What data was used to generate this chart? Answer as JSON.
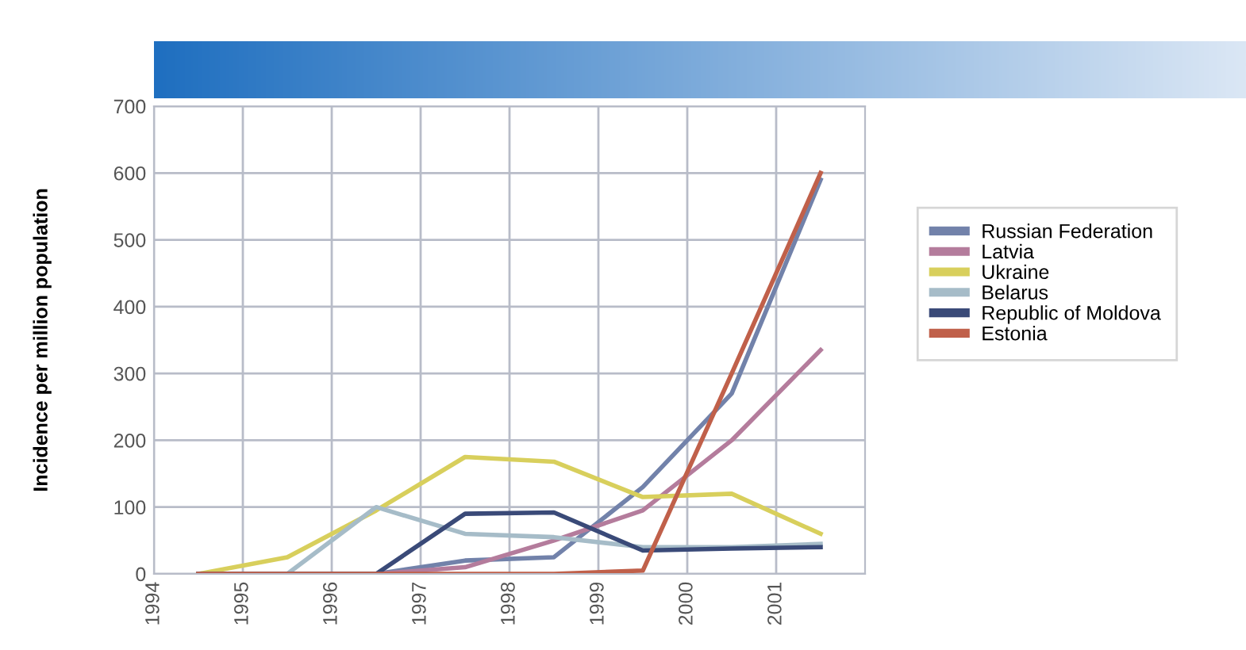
{
  "chart_data": {
    "type": "line",
    "ylabel": "Incidence per million population",
    "x": [
      1994.5,
      1995.5,
      1996.5,
      1997.5,
      1998.5,
      1999.5,
      2000.5,
      2001.5
    ],
    "series": [
      {
        "name": "Russian Federation",
        "color": "#7282aa",
        "values": [
          0,
          0,
          0,
          20,
          25,
          130,
          270,
          590
        ]
      },
      {
        "name": "Latvia",
        "color": "#b47c9c",
        "values": [
          0,
          0,
          0,
          10,
          50,
          95,
          200,
          335
        ]
      },
      {
        "name": "Ukraine",
        "color": "#d8cf5c",
        "values": [
          0,
          25,
          95,
          175,
          168,
          115,
          120,
          60
        ]
      },
      {
        "name": "Belarus",
        "color": "#a6bcc8",
        "values": [
          0,
          0,
          100,
          60,
          55,
          40,
          40,
          45
        ]
      },
      {
        "name": "Republic of Moldova",
        "color": "#3a4a78",
        "values": [
          0,
          0,
          0,
          90,
          92,
          35,
          38,
          40
        ]
      },
      {
        "name": "Estonia",
        "color": "#c0604a",
        "values": [
          0,
          0,
          0,
          0,
          0,
          5,
          300,
          600
        ]
      }
    ],
    "xlim": [
      1994,
      2002
    ],
    "xticks": [
      1994,
      1995,
      1996,
      1997,
      1998,
      1999,
      2000,
      2001
    ],
    "ylim": [
      0,
      700
    ],
    "yticks": [
      0,
      100,
      200,
      300,
      400,
      500,
      600,
      700
    ],
    "grid": true,
    "legend": "right",
    "marker": "none",
    "line_style": "solid"
  }
}
